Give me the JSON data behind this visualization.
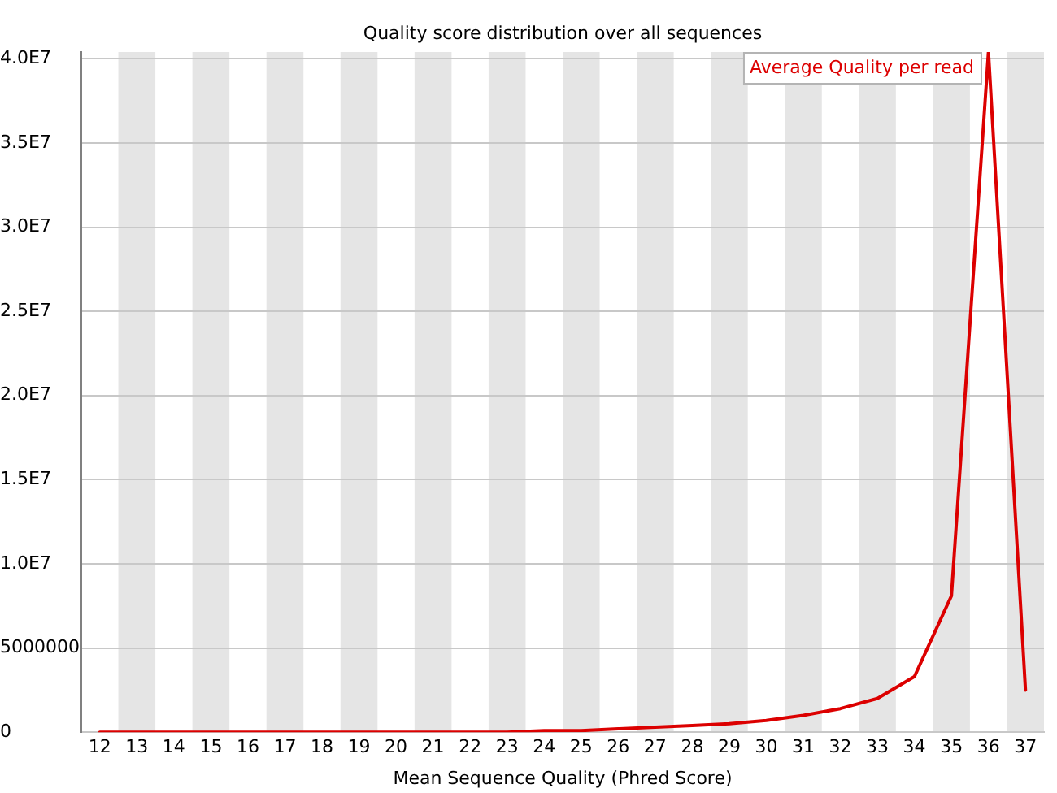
{
  "chart_data": {
    "type": "line",
    "title": "Quality score distribution over all sequences",
    "xlabel": "Mean Sequence Quality (Phred Score)",
    "x": [
      12,
      13,
      14,
      15,
      16,
      17,
      18,
      19,
      20,
      21,
      22,
      23,
      24,
      25,
      26,
      27,
      28,
      29,
      30,
      31,
      32,
      33,
      34,
      35,
      36,
      37
    ],
    "series": [
      {
        "name": "Average Quality per read",
        "color": "#dc0000",
        "values": [
          0,
          0,
          0,
          0,
          0,
          0,
          0,
          0,
          0,
          0,
          0,
          0,
          100000,
          100000,
          200000,
          300000,
          400000,
          500000,
          700000,
          1000000,
          1400000,
          2000000,
          3300000,
          8100000,
          40400000,
          2500000
        ]
      }
    ],
    "xlim": [
      11.5,
      37.5
    ],
    "xticks": [
      12,
      13,
      14,
      15,
      16,
      17,
      18,
      19,
      20,
      21,
      22,
      23,
      24,
      25,
      26,
      27,
      28,
      29,
      30,
      31,
      32,
      33,
      34,
      35,
      36,
      37
    ],
    "ylim": [
      0,
      40400000
    ],
    "yticks": [
      0,
      5000000,
      {
        "value": 10000000,
        "label": "1.0E7"
      },
      {
        "value": 15000000,
        "label": "1.5E7"
      },
      {
        "value": 20000000,
        "label": "2.0E7"
      },
      {
        "value": 25000000,
        "label": "2.5E7"
      },
      {
        "value": 30000000,
        "label": "3.0E7"
      },
      {
        "value": 35000000,
        "label": "3.5E7"
      },
      {
        "value": 40000000,
        "label": "4.0E7"
      }
    ],
    "grid": "y",
    "legend": "top right",
    "marker": "none",
    "line_style": "solid",
    "bands": [
      {
        "axis": "x",
        "from": 12.5,
        "to": 13.5,
        "color": "#e5e5e5"
      },
      {
        "axis": "x",
        "from": 14.5,
        "to": 15.5,
        "color": "#e5e5e5"
      },
      {
        "axis": "x",
        "from": 16.5,
        "to": 17.5,
        "color": "#e5e5e5"
      },
      {
        "axis": "x",
        "from": 18.5,
        "to": 19.5,
        "color": "#e5e5e5"
      },
      {
        "axis": "x",
        "from": 20.5,
        "to": 21.5,
        "color": "#e5e5e5"
      },
      {
        "axis": "x",
        "from": 22.5,
        "to": 23.5,
        "color": "#e5e5e5"
      },
      {
        "axis": "x",
        "from": 24.5,
        "to": 25.5,
        "color": "#e5e5e5"
      },
      {
        "axis": "x",
        "from": 26.5,
        "to": 27.5,
        "color": "#e5e5e5"
      },
      {
        "axis": "x",
        "from": 28.5,
        "to": 29.5,
        "color": "#e5e5e5"
      },
      {
        "axis": "x",
        "from": 30.5,
        "to": 31.5,
        "color": "#e5e5e5"
      },
      {
        "axis": "x",
        "from": 32.5,
        "to": 33.5,
        "color": "#e5e5e5"
      },
      {
        "axis": "x",
        "from": 34.5,
        "to": 35.5,
        "color": "#e5e5e5"
      },
      {
        "axis": "x",
        "from": 36.5,
        "to": 37.5,
        "color": "#e5e5e5"
      }
    ]
  }
}
